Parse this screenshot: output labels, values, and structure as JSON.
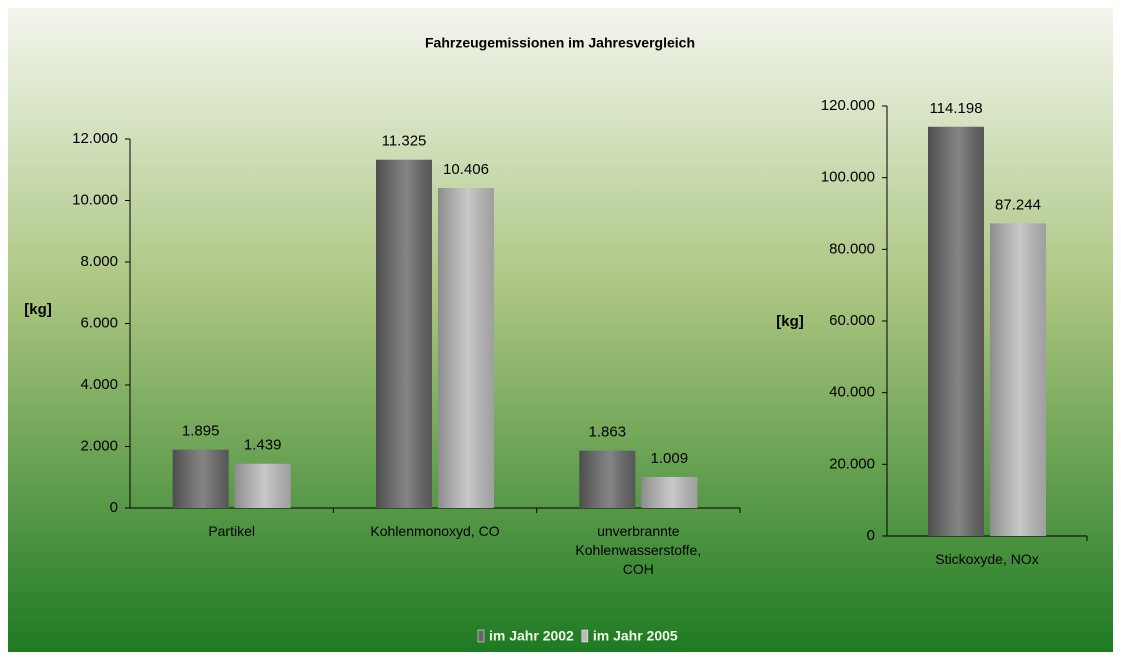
{
  "chart_data": [
    {
      "type": "bar",
      "title": "Fahrzeugemissionen im Jahresvergleich",
      "ylabel": "[kg]",
      "categories": [
        "Partikel",
        "Kohlenmonoxyd, CO",
        "unverbrannte Kohlenwasserstoffe, COH"
      ],
      "series": [
        {
          "name": "im Jahr 2002",
          "color": "#666666",
          "values": [
            1895,
            11325,
            1863
          ],
          "value_labels": [
            "1.895",
            "11.325",
            "1.863"
          ]
        },
        {
          "name": "im Jahr 2005",
          "color": "#bbbbbb",
          "values": [
            1439,
            10406,
            1009
          ],
          "value_labels": [
            "1.439",
            "10.406",
            "1.009"
          ]
        }
      ],
      "ylim": [
        0,
        12000
      ],
      "yticks": [
        0,
        {
          "value": 2000,
          "label": "2.000"
        },
        {
          "value": 4000,
          "label": "4.000"
        },
        {
          "value": 6000,
          "label": "6.000"
        },
        {
          "value": 8000,
          "label": "8.000"
        },
        {
          "value": 10000,
          "label": "10.000"
        },
        {
          "value": 12000,
          "label": "12.000"
        }
      ]
    },
    {
      "type": "bar",
      "ylabel": "[kg]",
      "categories": [
        "Stickoxyde, NOx"
      ],
      "series": [
        {
          "color": "#666666",
          "values": [
            114198
          ],
          "value_labels": [
            "114.198"
          ]
        },
        {
          "color": "#bbbbbb",
          "values": [
            87244
          ],
          "value_labels": [
            "87.244"
          ]
        }
      ],
      "ylim": [
        0,
        120000
      ],
      "yticks": [
        0,
        {
          "value": 20000,
          "label": "20.000"
        },
        {
          "value": 40000,
          "label": "40.000"
        },
        {
          "value": 60000,
          "label": "60.000"
        },
        {
          "value": 80000,
          "label": "80.000"
        },
        {
          "value": 100000,
          "label": "100.000"
        },
        {
          "value": 120000,
          "label": "120.000"
        }
      ]
    }
  ]
}
